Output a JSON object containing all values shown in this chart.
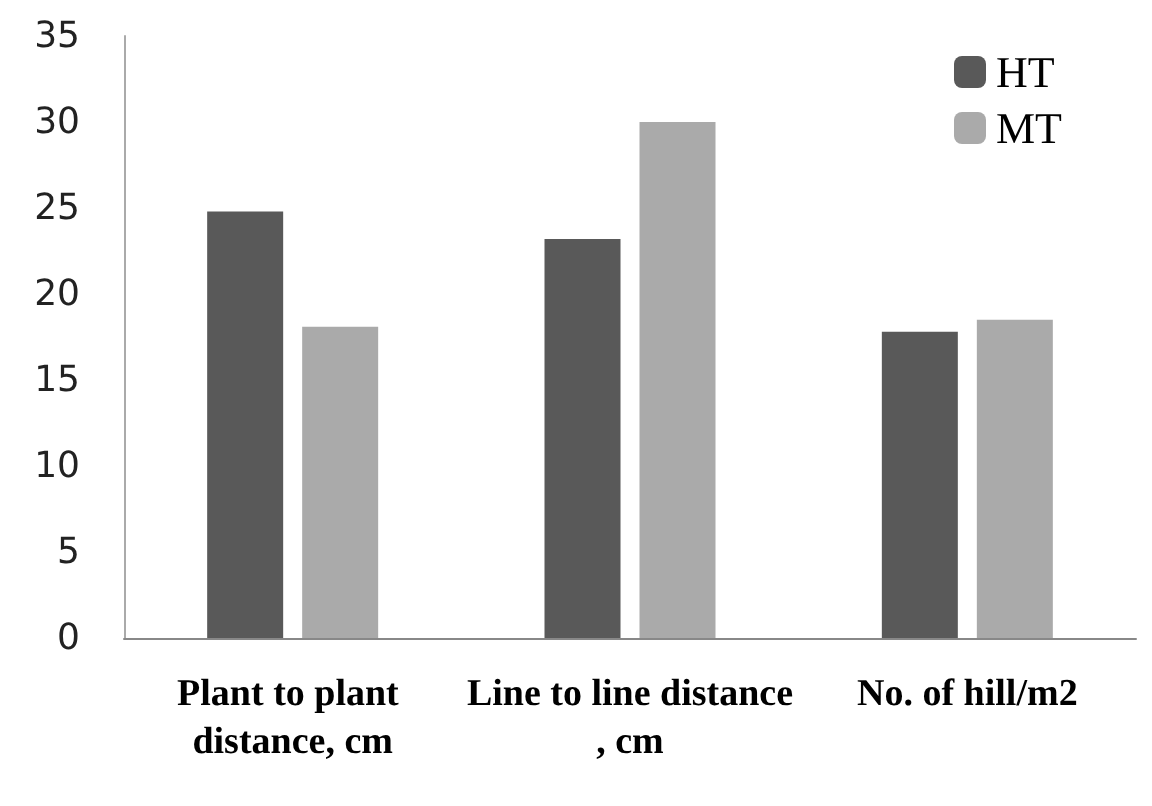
{
  "chart_data": {
    "type": "bar",
    "categories": [
      "Plant to plant distance, cm",
      "Line to line distance, cm",
      "No. of hill/m2"
    ],
    "series": [
      {
        "name": "HT",
        "color": "#595959",
        "values": [
          24.8,
          23.2,
          17.8
        ]
      },
      {
        "name": "MT",
        "color": "#aaaaaa",
        "values": [
          18.1,
          30.0,
          18.5
        ]
      }
    ],
    "ylim": [
      0,
      35
    ],
    "yticks": [
      0,
      5,
      10,
      15,
      20,
      25,
      30,
      35
    ],
    "grid": false,
    "legend": "top right"
  }
}
